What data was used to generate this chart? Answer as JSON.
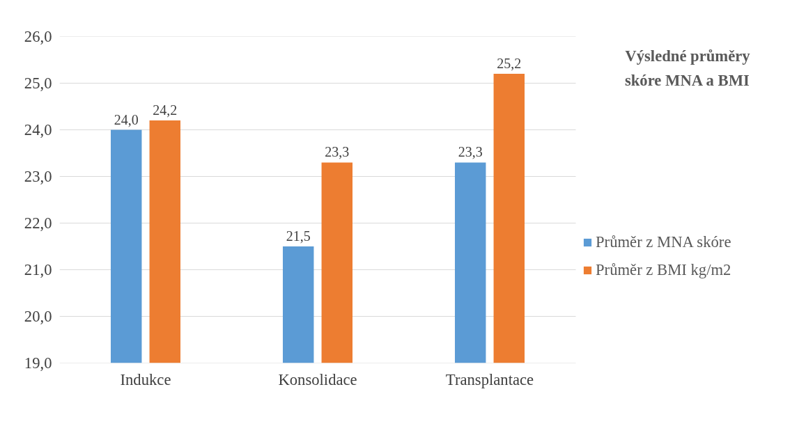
{
  "chart_data": {
    "type": "bar",
    "title": "Výsledné průměry skóre MNA a BMI",
    "categories": [
      "Indukce",
      "Konsolidace",
      "Transplantace"
    ],
    "series": [
      {
        "name": "Průměr z MNA skóre",
        "color": "#5b9bd5",
        "values": [
          24.0,
          21.5,
          23.3
        ],
        "value_labels": [
          "24,0",
          "21,5",
          "23,3"
        ]
      },
      {
        "name": "Průměr z BMI kg/m2",
        "color": "#ed7d31",
        "values": [
          24.2,
          23.3,
          25.2
        ],
        "value_labels": [
          "24,2",
          "23,3",
          "25,2"
        ]
      }
    ],
    "ylim": [
      19,
      26
    ],
    "yticks": [
      {
        "value": 19,
        "label": "19,0"
      },
      {
        "value": 20,
        "label": "20,0"
      },
      {
        "value": 21,
        "label": "21,0"
      },
      {
        "value": 22,
        "label": "22,0"
      },
      {
        "value": 23,
        "label": "23,0"
      },
      {
        "value": 24,
        "label": "24,0"
      },
      {
        "value": 25,
        "label": "25,0"
      },
      {
        "value": 26,
        "label": "26,0"
      }
    ],
    "grid": "y",
    "legend": "right"
  }
}
